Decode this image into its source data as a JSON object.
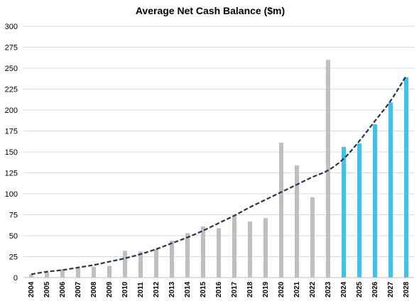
{
  "chart_data": {
    "type": "bar",
    "title": "Average Net Cash Balance ($m)",
    "xlabel": "",
    "ylabel": "",
    "ylim": [
      0,
      300
    ],
    "yticks": [
      0,
      25,
      50,
      75,
      100,
      125,
      150,
      175,
      200,
      225,
      250,
      275,
      300
    ],
    "grid": true,
    "legend": "none",
    "categories": [
      "2004",
      "2005",
      "2006",
      "2007",
      "2008",
      "2009",
      "2010",
      "2011",
      "2012",
      "2013",
      "2014",
      "2015",
      "2016",
      "2017",
      "2018",
      "2019",
      "2020",
      "2021",
      "2022",
      "2023",
      "2024",
      "2025",
      "2026",
      "2027",
      "2028"
    ],
    "series": [
      {
        "type": "bar",
        "values": [
          4,
          6,
          10,
          11,
          13,
          14,
          32,
          31,
          34,
          44,
          53,
          61,
          59,
          74,
          67,
          71,
          161,
          134,
          96,
          260,
          156,
          160,
          183,
          209,
          239
        ],
        "colors_by_point": [
          "#bfbfbf",
          "#bfbfbf",
          "#bfbfbf",
          "#bfbfbf",
          "#bfbfbf",
          "#bfbfbf",
          "#bfbfbf",
          "#bfbfbf",
          "#bfbfbf",
          "#bfbfbf",
          "#bfbfbf",
          "#bfbfbf",
          "#bfbfbf",
          "#bfbfbf",
          "#bfbfbf",
          "#bfbfbf",
          "#bfbfbf",
          "#bfbfbf",
          "#bfbfbf",
          "#bfbfbf",
          "#3bc3f0",
          "#3bc3f0",
          "#3bc3f0",
          "#3bc3f0",
          "#3bc3f0"
        ]
      },
      {
        "type": "line",
        "style": "dashed",
        "color": "#1f3552",
        "values": [
          4,
          7,
          9,
          12,
          15,
          19,
          23,
          28,
          34,
          41,
          48,
          56,
          65,
          74,
          84,
          93,
          102,
          111,
          120,
          128,
          142,
          163,
          187,
          211,
          241
        ]
      }
    ]
  }
}
